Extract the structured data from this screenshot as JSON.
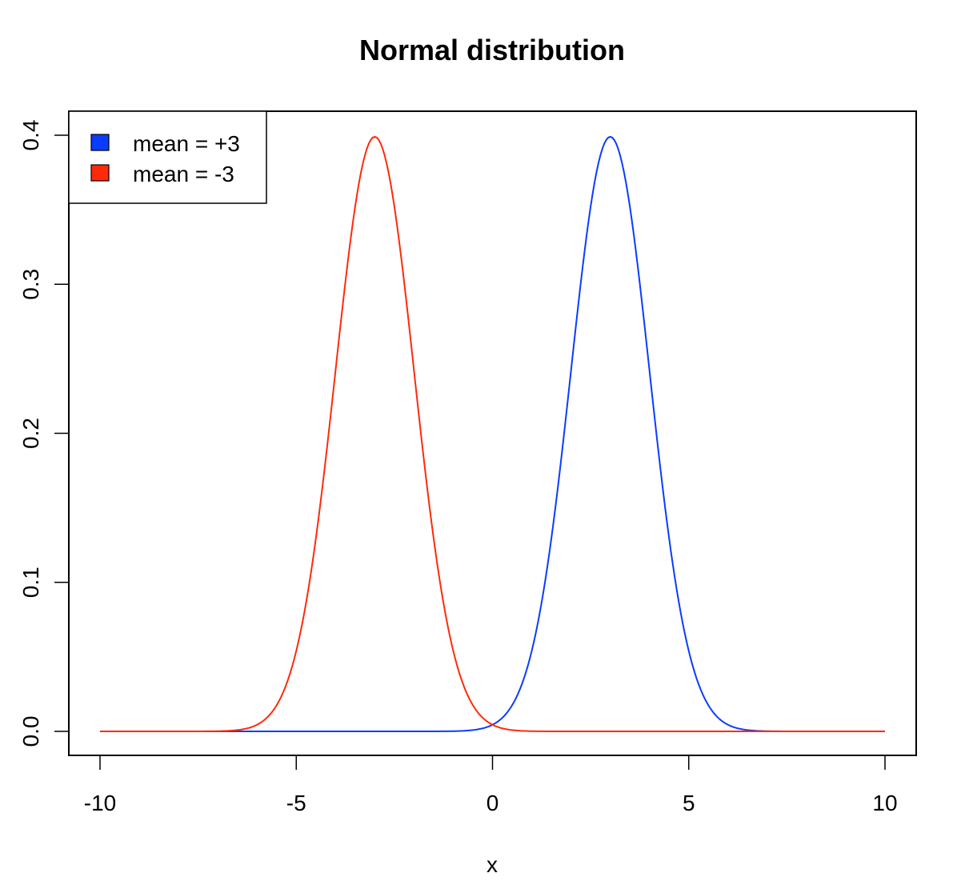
{
  "chart_data": {
    "type": "line",
    "title": "Normal distribution",
    "xlabel": "x",
    "ylabel": "",
    "xlim": [
      -10,
      10
    ],
    "ylim": [
      0,
      0.4
    ],
    "x_ticks": [
      "-10",
      "-5",
      "0",
      "5",
      "10"
    ],
    "y_ticks": [
      "0.0",
      "0.1",
      "0.2",
      "0.3",
      "0.4"
    ],
    "grid": false,
    "legend_position": "top-left",
    "series": [
      {
        "name": "mean = +3",
        "color": "#0a3cff",
        "distribution": "normal",
        "mean": 3,
        "sd": 1
      },
      {
        "name": "mean = -3",
        "color": "#ff2a0a",
        "distribution": "normal",
        "mean": -3,
        "sd": 1
      }
    ]
  }
}
